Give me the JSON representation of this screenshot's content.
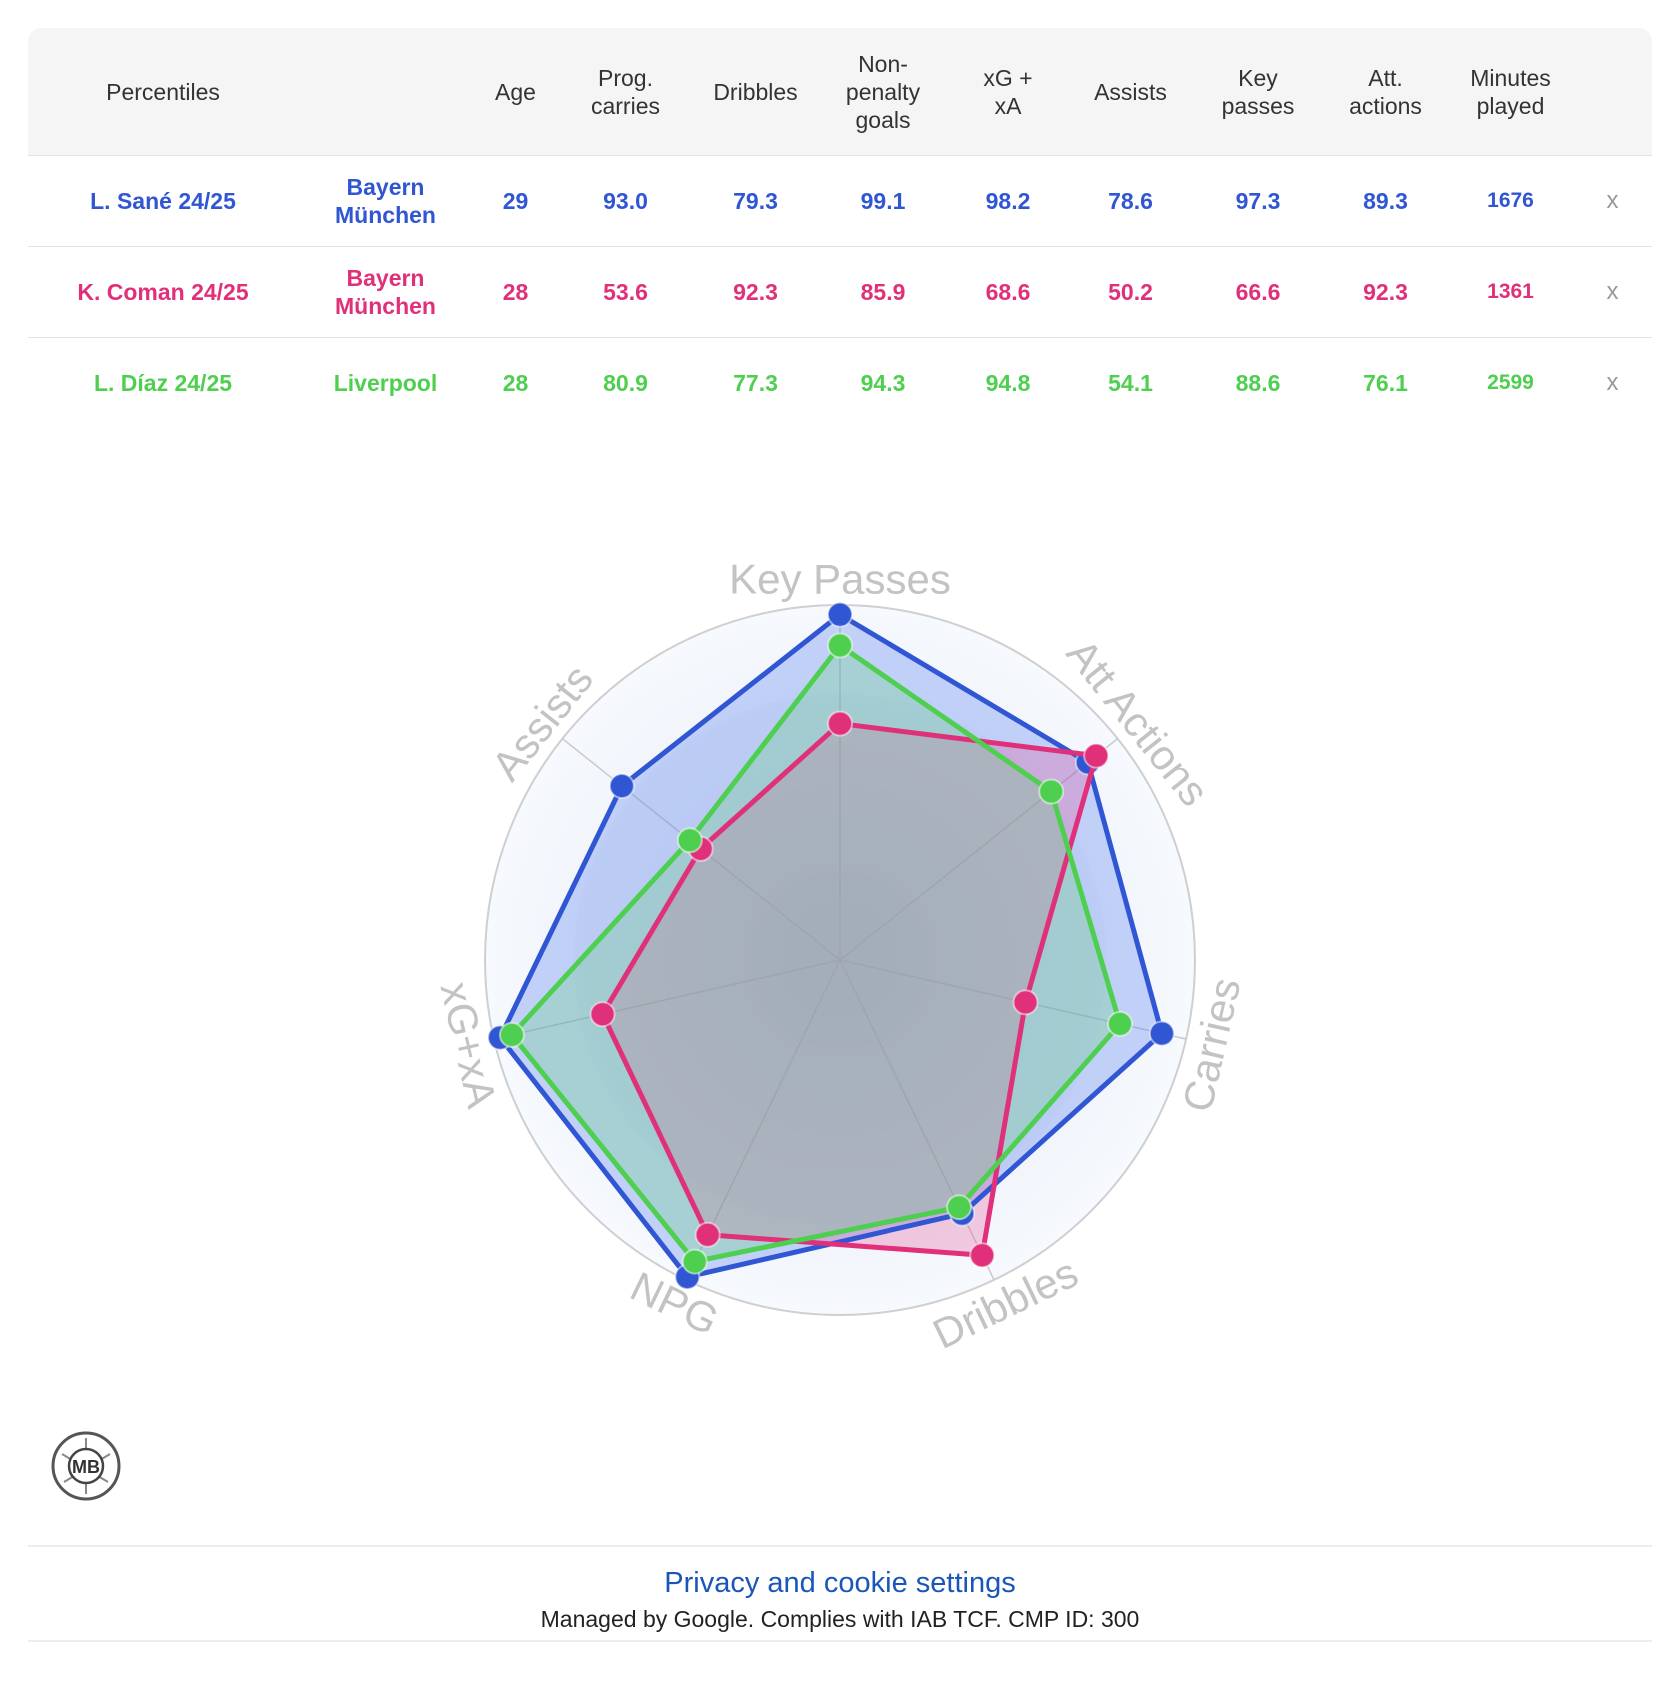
{
  "table": {
    "headers": [
      "Percentiles",
      "",
      "Age",
      "Prog.\ncarries",
      "Dribbles",
      "Non-\npenalty\ngoals",
      "xG +\nxA",
      "Assists",
      "Key\npasses",
      "Att.\nactions",
      "Minutes\nplayed",
      ""
    ],
    "remove_label": "x",
    "rows": [
      {
        "player": "L. Sané 24/25",
        "team": "Bayern\nMünchen",
        "age": "29",
        "prog_carries": "93.0",
        "dribbles": "79.3",
        "npg": "99.1",
        "xg_xa": "98.2",
        "assists": "78.6",
        "key_passes": "97.3",
        "att_actions": "89.3",
        "minutes": "1676",
        "color": "#3056d3"
      },
      {
        "player": "K. Coman 24/25",
        "team": "Bayern\nMünchen",
        "age": "28",
        "prog_carries": "53.6",
        "dribbles": "92.3",
        "npg": "85.9",
        "xg_xa": "68.6",
        "assists": "50.2",
        "key_passes": "66.6",
        "att_actions": "92.3",
        "minutes": "1361",
        "color": "#e0307a"
      },
      {
        "player": "L. Díaz 24/25",
        "team": "Liverpool",
        "age": "28",
        "prog_carries": "80.9",
        "dribbles": "77.3",
        "npg": "94.3",
        "xg_xa": "94.8",
        "assists": "54.1",
        "key_passes": "88.6",
        "att_actions": "76.1",
        "minutes": "2599",
        "color": "#4fcf4f"
      }
    ]
  },
  "chart_data": {
    "type": "radar",
    "axes": [
      "Key Passes",
      "Att Actions",
      "Carries",
      "Dribbles",
      "NPG",
      "xG+xA",
      "Assists"
    ],
    "range": [
      0,
      100
    ],
    "grid": true,
    "series": [
      {
        "name": "L. Sané 24/25",
        "color": "#3056d3",
        "fill": "rgba(80,120,240,0.30)",
        "values": [
          97.3,
          89.3,
          93.0,
          79.3,
          99.1,
          98.2,
          78.6
        ]
      },
      {
        "name": "K. Coman 24/25",
        "color": "#e0307a",
        "fill": "rgba(230,80,150,0.28)",
        "values": [
          66.6,
          92.3,
          53.6,
          92.3,
          85.9,
          68.6,
          50.2
        ]
      },
      {
        "name": "L. Díaz 24/25",
        "color": "#4fcf4f",
        "fill": "rgba(100,210,120,0.28)",
        "values": [
          88.6,
          76.1,
          80.9,
          77.3,
          94.3,
          94.8,
          54.1
        ]
      }
    ]
  },
  "logo": {
    "text": "MB"
  },
  "footer": {
    "privacy_link": "Privacy and cookie settings",
    "managed_text": "Managed by Google. Complies with IAB TCF. CMP ID: 300"
  }
}
